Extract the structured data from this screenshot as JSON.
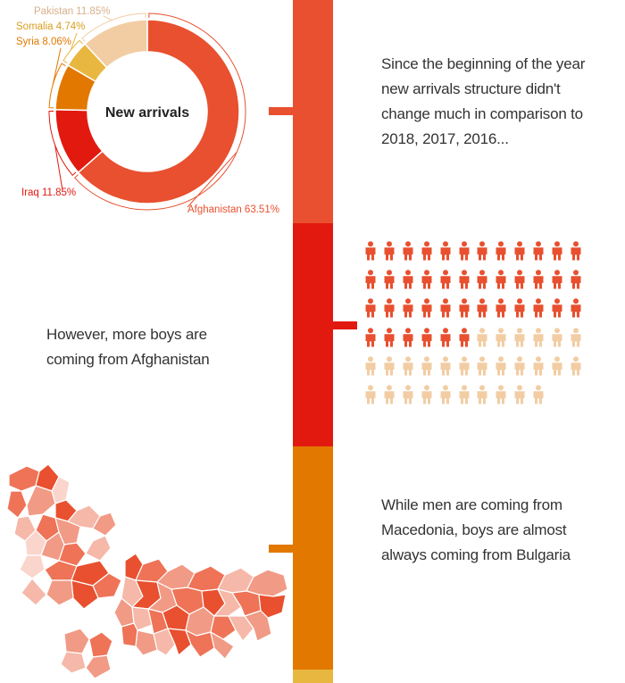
{
  "chart_data": [
    {
      "type": "pie",
      "center_label": "New arrivals",
      "categories": [
        "Afghanistan",
        "Iraq",
        "Syria",
        "Somalia",
        "Pakistan"
      ],
      "values": [
        63.51,
        11.85,
        8.06,
        4.74,
        11.85
      ],
      "labels": [
        "Afghanistan 63.51%",
        "Iraq 11.85%",
        "Syria 8.06%",
        "Somalia 4.74%",
        "Pakistan 11.85%"
      ],
      "colors": [
        "#e8502f",
        "#e2190f",
        "#e27800",
        "#e8b740",
        "#f2cda4"
      ]
    },
    {
      "type": "pictogram",
      "icon": "person-icon",
      "total": 70,
      "columns": 12,
      "highlighted": 42,
      "colors": {
        "highlighted": "#e8502f",
        "other": "#f2cda4"
      }
    }
  ],
  "timeline": {
    "segments": [
      {
        "color": "#e8502f"
      },
      {
        "color": "#e2190f"
      },
      {
        "color": "#e27800"
      },
      {
        "color": "#e8b740"
      }
    ]
  },
  "texts": {
    "para1": "Since the beginning of the year new arrivals structure didn't change much in comparison to 2018, 2017, 2016...",
    "para2": "However, more boys are coming from Afghanistan",
    "para3": "While men are coming from Macedonia, boys are almost always coming from Bulgaria"
  },
  "map": {
    "icon": "balkan-regions-map",
    "palette": [
      "#e8502f",
      "#ee7357",
      "#f19a85",
      "#f5b8a9",
      "#fad5cc"
    ]
  }
}
